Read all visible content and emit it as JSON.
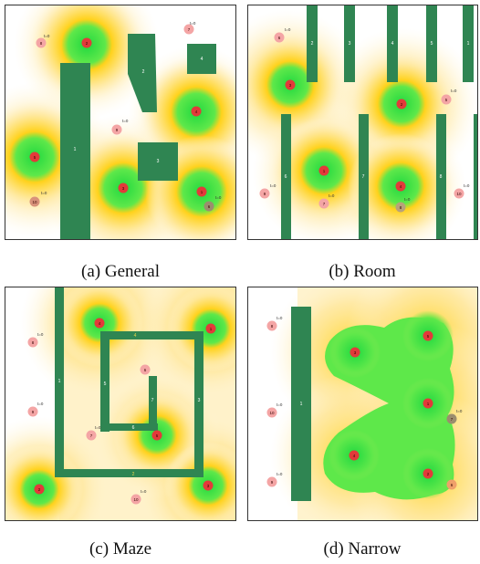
{
  "panels": [
    {
      "id": "a",
      "caption": "(a) General",
      "obstacles": [
        {
          "label": "1",
          "shape": "rect"
        },
        {
          "label": "2",
          "shape": "trapezoid"
        },
        {
          "label": "3",
          "shape": "rect"
        },
        {
          "label": "4",
          "shape": "rect"
        }
      ],
      "robots": [
        {
          "label": "1",
          "state": "covering"
        },
        {
          "label": "2",
          "state": "covering"
        },
        {
          "label": "3",
          "state": "covering"
        },
        {
          "label": "4",
          "state": "covering"
        },
        {
          "label": "5",
          "state": "covering"
        },
        {
          "label": "6",
          "state": "waiting",
          "tag": "t=0"
        },
        {
          "label": "7",
          "state": "waiting"
        },
        {
          "label": "8",
          "state": "waiting"
        },
        {
          "label": "9",
          "state": "waiting",
          "tag": "t=0"
        },
        {
          "label": "10",
          "state": "waiting",
          "tag": "t=0"
        }
      ]
    },
    {
      "id": "b",
      "caption": "(b) Room",
      "obstacles": [
        {
          "label": "1"
        },
        {
          "label": "2"
        },
        {
          "label": "3"
        },
        {
          "label": "4"
        },
        {
          "label": "5"
        },
        {
          "label": "6"
        },
        {
          "label": "7"
        },
        {
          "label": "8"
        }
      ],
      "robots": [
        {
          "label": "1",
          "state": "covering"
        },
        {
          "label": "2",
          "state": "covering"
        },
        {
          "label": "3",
          "state": "covering"
        },
        {
          "label": "4",
          "state": "covering"
        },
        {
          "label": "5",
          "state": "waiting"
        },
        {
          "label": "6",
          "state": "waiting",
          "tag": "t=0"
        },
        {
          "label": "7",
          "state": "waiting",
          "tag": "t=0"
        },
        {
          "label": "8",
          "state": "waiting",
          "tag": "t=0"
        },
        {
          "label": "9",
          "state": "waiting",
          "tag": "t=0"
        },
        {
          "label": "10",
          "state": "waiting",
          "tag": "t=0"
        }
      ]
    },
    {
      "id": "c",
      "caption": "(c) Maze",
      "obstacles": [
        {
          "label": "1"
        },
        {
          "label": "2"
        },
        {
          "label": "3"
        },
        {
          "label": "4"
        },
        {
          "label": "5"
        },
        {
          "label": "6"
        },
        {
          "label": "7"
        },
        {
          "label": "8"
        }
      ],
      "robots": [
        {
          "label": "1",
          "state": "covering"
        },
        {
          "label": "2",
          "state": "covering"
        },
        {
          "label": "3",
          "state": "covering"
        },
        {
          "label": "4",
          "state": "covering"
        },
        {
          "label": "5",
          "state": "covering"
        },
        {
          "label": "6",
          "state": "waiting"
        },
        {
          "label": "7",
          "state": "waiting",
          "tag": "t=0"
        },
        {
          "label": "8",
          "state": "waiting",
          "tag": "t=0"
        },
        {
          "label": "9",
          "state": "waiting",
          "tag": "t=0"
        },
        {
          "label": "10",
          "state": "waiting",
          "tag": "t=0"
        }
      ]
    },
    {
      "id": "d",
      "caption": "(d) Narrow",
      "obstacles": [
        {
          "label": "1"
        }
      ],
      "robots": [
        {
          "label": "1",
          "state": "covering"
        },
        {
          "label": "2",
          "state": "covering"
        },
        {
          "label": "3",
          "state": "covering"
        },
        {
          "label": "4",
          "state": "covering"
        },
        {
          "label": "5",
          "state": "covering"
        },
        {
          "label": "6",
          "state": "waiting"
        },
        {
          "label": "7",
          "state": "waiting",
          "tag": "t=0"
        },
        {
          "label": "8",
          "state": "waiting",
          "tag": "t=0"
        },
        {
          "label": "9",
          "state": "waiting",
          "tag": "t=0"
        },
        {
          "label": "10",
          "state": "waiting",
          "tag": "t=0"
        }
      ]
    }
  ],
  "colors": {
    "obstacle": "#2f8552",
    "coverage_core": "#33dd44",
    "coverage_mid": "#a8ec3a",
    "coverage_outer": "#ffd21c",
    "coverage_fade": "#fff3d2",
    "robot_active": "#e23a3a",
    "robot_waiting": "#f4a5a5",
    "robot_dark": "#9b8e6e",
    "marker_small": "#e6d54a"
  }
}
